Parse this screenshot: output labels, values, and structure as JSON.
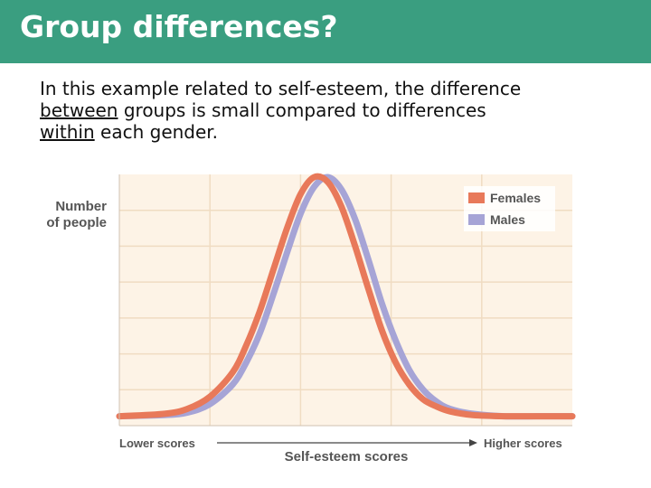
{
  "slide": {
    "title": "Group differences?",
    "body_part1": "In this example related to self-esteem, the difference",
    "body_between": "between",
    "body_part2": " groups is small compared to differences",
    "body_within": "within",
    "body_part3": " each gender."
  },
  "colors": {
    "title_bar": "#3a9e80",
    "plot_background": "#fdf3e6",
    "grid": "#f0dcc2",
    "females": "#e8795a",
    "males": "#a6a4d6"
  },
  "chart_data": {
    "type": "line",
    "title": "",
    "ylabel_line1": "Number",
    "ylabel_line2": "of people",
    "xlabel": "Self-esteem scores",
    "x_low_label": "Lower scores",
    "x_high_label": "Higher scores",
    "xlim": [
      0,
      100
    ],
    "ylim": [
      0,
      1
    ],
    "grid": true,
    "legend_position": "top-right",
    "series": [
      {
        "name": "Females",
        "color": "#e8795a",
        "x": [
          0,
          10,
          15,
          20,
          25,
          28,
          31,
          34,
          37,
          40,
          43,
          46,
          49,
          52,
          55,
          58,
          61,
          64,
          67,
          70,
          73,
          78,
          85,
          92,
          100
        ],
        "y": [
          0.02,
          0.03,
          0.05,
          0.1,
          0.2,
          0.31,
          0.45,
          0.62,
          0.79,
          0.93,
          1.0,
          0.98,
          0.88,
          0.72,
          0.54,
          0.37,
          0.24,
          0.15,
          0.09,
          0.06,
          0.04,
          0.025,
          0.02,
          0.02,
          0.02
        ]
      },
      {
        "name": "Males",
        "color": "#a6a4d6",
        "x": [
          0,
          10,
          15,
          20,
          25,
          28,
          31,
          34,
          37,
          40,
          43,
          46,
          49,
          52,
          55,
          58,
          61,
          64,
          67,
          70,
          73,
          78,
          85,
          92,
          100
        ],
        "y": [
          0.02,
          0.025,
          0.035,
          0.07,
          0.15,
          0.24,
          0.36,
          0.52,
          0.69,
          0.85,
          0.96,
          1.0,
          0.95,
          0.83,
          0.66,
          0.48,
          0.33,
          0.21,
          0.13,
          0.08,
          0.05,
          0.03,
          0.02,
          0.02,
          0.02
        ]
      }
    ]
  }
}
